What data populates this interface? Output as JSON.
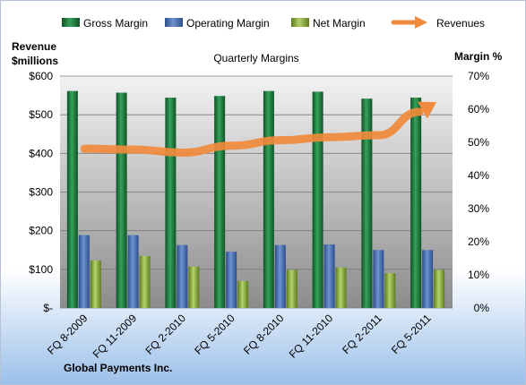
{
  "chart_data": {
    "type": "bar",
    "title": "Quarterly Margins",
    "company": "Global Payments Inc.",
    "categories": [
      "FQ 8-2009",
      "FQ 11-2009",
      "FQ 2-2010",
      "FQ 5-2010",
      "FQ 8-2010",
      "FQ 11-2010",
      "FQ 2-2011",
      "FQ 5-2011"
    ],
    "series": [
      {
        "name": "Gross Margin",
        "axis": "right",
        "values": [
          65.5,
          65,
          63.5,
          64,
          65.5,
          65.3,
          63.2,
          63.5
        ],
        "color": "#1f7a3c"
      },
      {
        "name": "Operating Margin",
        "axis": "right",
        "values": [
          22,
          22,
          19,
          17,
          19,
          19.2,
          17.5,
          17.5
        ],
        "color": "#4a6fb0"
      },
      {
        "name": "Net Margin",
        "axis": "right",
        "values": [
          14.3,
          15.7,
          12.5,
          8.2,
          11.5,
          12.2,
          10.5,
          11.5
        ],
        "color": "#86a83c"
      }
    ],
    "line_series": {
      "name": "Revenues",
      "axis": "left",
      "values": [
        412,
        410,
        402,
        420,
        434,
        442,
        447,
        520
      ],
      "color": "#f08a3c"
    },
    "left_axis": {
      "label_line1": "Revenue",
      "label_line2": "$millions",
      "min": 0,
      "max": 600,
      "ticks": [
        {
          "v": 0,
          "t": "$-"
        },
        {
          "v": 100,
          "t": "$100"
        },
        {
          "v": 200,
          "t": "$200"
        },
        {
          "v": 300,
          "t": "$300"
        },
        {
          "v": 400,
          "t": "$400"
        },
        {
          "v": 500,
          "t": "$500"
        },
        {
          "v": 600,
          "t": "$600"
        }
      ]
    },
    "right_axis": {
      "label": "Margin %",
      "min": 0,
      "max": 70,
      "ticks": [
        {
          "v": 0,
          "t": "0%"
        },
        {
          "v": 10,
          "t": "10%"
        },
        {
          "v": 20,
          "t": "20%"
        },
        {
          "v": 30,
          "t": "30%"
        },
        {
          "v": 40,
          "t": "40%"
        },
        {
          "v": 50,
          "t": "50%"
        },
        {
          "v": 60,
          "t": "60%"
        },
        {
          "v": 70,
          "t": "70%"
        }
      ]
    },
    "legend_position": "top",
    "grid": true
  }
}
